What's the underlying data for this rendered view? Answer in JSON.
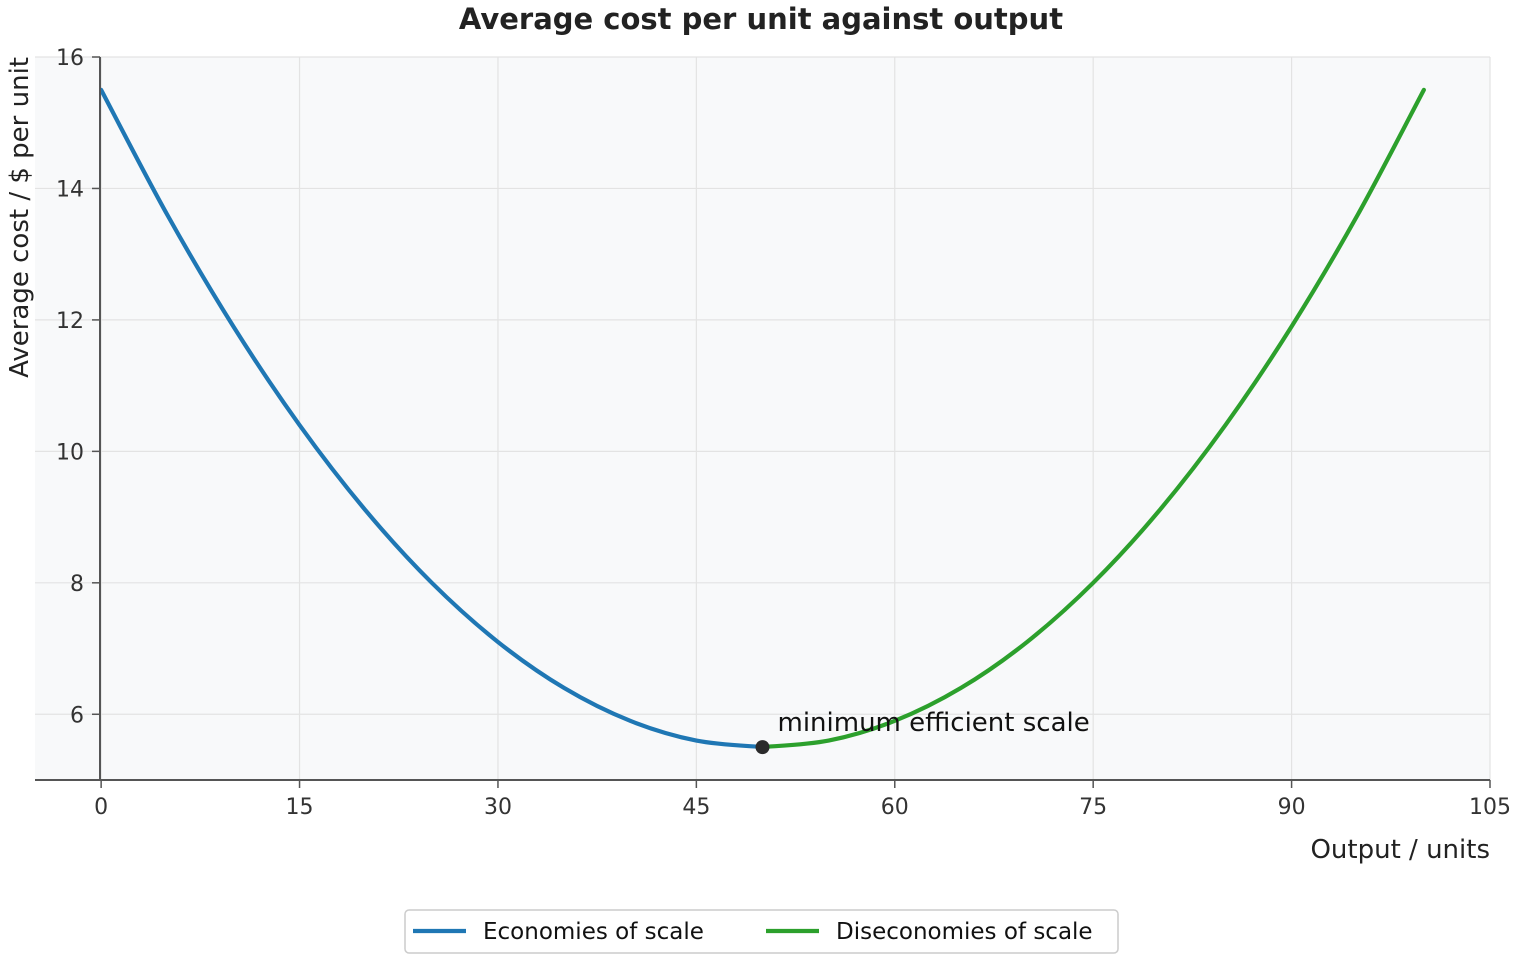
{
  "chart_data": {
    "type": "line",
    "title": "Average cost per unit against output",
    "xlabel": "Output / units",
    "ylabel": "Average cost / $ per unit",
    "xlim": [
      -5,
      105
    ],
    "ylim": [
      5,
      16
    ],
    "xticks": [
      0,
      15,
      30,
      45,
      60,
      75,
      90,
      105
    ],
    "yticks": [
      6,
      8,
      10,
      12,
      14,
      16
    ],
    "grid": true,
    "legend_position": "bottom-center",
    "series": [
      {
        "name": "Economies of scale",
        "color": "#1f77b4",
        "x": [
          0,
          5,
          10,
          15,
          20,
          25,
          30,
          35,
          40,
          45,
          50
        ],
        "y": [
          15.5,
          13.6,
          11.9,
          10.4,
          9.1,
          8.0,
          7.1,
          6.4,
          5.9,
          5.6,
          5.5
        ]
      },
      {
        "name": "Diseconomies of scale",
        "color": "#2ca02c",
        "x": [
          50,
          55,
          60,
          65,
          70,
          75,
          80,
          85,
          90,
          95,
          100
        ],
        "y": [
          5.5,
          5.6,
          5.9,
          6.4,
          7.1,
          8.0,
          9.1,
          10.4,
          11.9,
          13.6,
          15.5
        ]
      }
    ],
    "annotations": [
      {
        "text": "minimum efficient scale",
        "x": 50,
        "y": 5.5
      }
    ]
  }
}
